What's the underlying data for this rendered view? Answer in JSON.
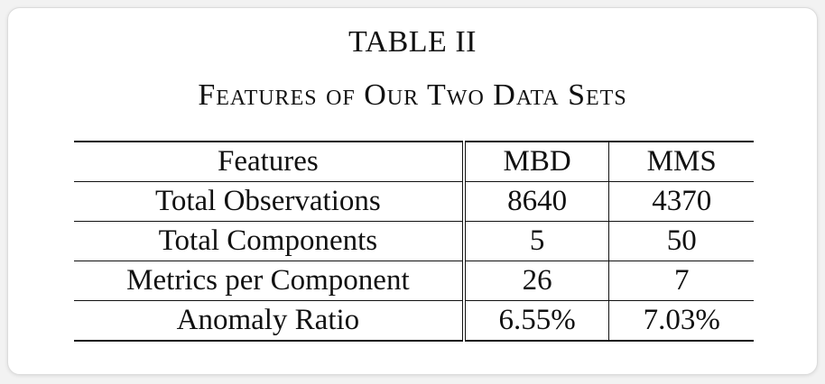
{
  "table": {
    "label": "TABLE II",
    "caption": "Features of Our Two Data Sets",
    "headers": [
      "Features",
      "MBD",
      "MMS"
    ],
    "rows": [
      [
        "Total Observations",
        "8640",
        "4370"
      ],
      [
        "Total Components",
        "5",
        "50"
      ],
      [
        "Metrics per Component",
        "26",
        "7"
      ],
      [
        "Anomaly Ratio",
        "6.55%",
        "7.03%"
      ]
    ]
  }
}
